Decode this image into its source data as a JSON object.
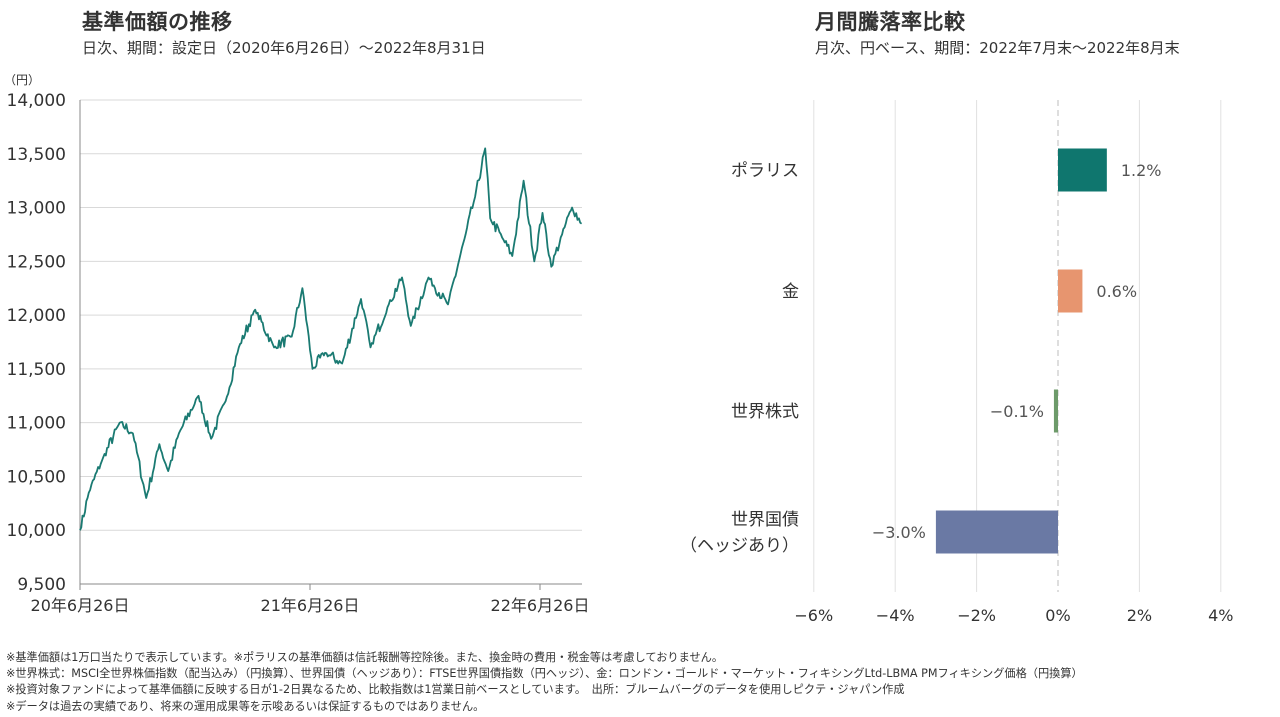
{
  "left_chart": {
    "title": "基準価額の推移",
    "subtitle": "日次、期間：設定日（2020年6月26日）～2022年8月31日"
  },
  "right_chart": {
    "title": "月間騰落率比較",
    "subtitle": "月次、円ベース、期間：2022年7月末～2022年8月末"
  },
  "chart_data": [
    {
      "type": "line",
      "ylabel": "（円）",
      "ylim": [
        9500,
        14000
      ],
      "yticks": [
        "9,500",
        "10,000",
        "10,500",
        "11,000",
        "11,500",
        "12,000",
        "12,500",
        "13,000",
        "13,500",
        "14,000"
      ],
      "xticks": [
        "20年6月26日",
        "21年6月26日",
        "22年6月26日"
      ],
      "grid": true,
      "series": [
        {
          "color": "#1a7a72",
          "x": [
            "2020-06-26",
            "2020-07-10",
            "2020-07-31",
            "2020-08-28",
            "2020-09-18",
            "2020-10-09",
            "2020-10-30",
            "2020-11-13",
            "2020-11-30",
            "2020-12-31",
            "2021-01-20",
            "2021-02-12",
            "2021-03-05",
            "2021-03-31",
            "2021-04-30",
            "2021-05-28",
            "2021-06-14",
            "2021-06-30",
            "2021-07-20",
            "2021-08-16",
            "2021-09-15",
            "2021-09-30",
            "2021-10-29",
            "2021-11-19",
            "2021-12-03",
            "2021-12-31",
            "2022-01-31",
            "2022-02-28",
            "2022-03-15",
            "2022-03-31",
            "2022-04-08",
            "2022-04-29",
            "2022-05-13",
            "2022-05-31",
            "2022-06-17",
            "2022-06-30",
            "2022-07-14",
            "2022-07-31",
            "2022-08-16",
            "2022-08-31"
          ],
          "y": [
            10000,
            10350,
            10650,
            11000,
            10900,
            10300,
            10800,
            10550,
            10900,
            11250,
            10850,
            11200,
            11700,
            12050,
            11700,
            11800,
            12250,
            11500,
            11650,
            11550,
            12150,
            11700,
            12100,
            12350,
            11900,
            12350,
            12100,
            12750,
            13100,
            13550,
            12900,
            12700,
            12550,
            13250,
            12500,
            12950,
            12450,
            12750,
            13000,
            12850
          ]
        }
      ]
    },
    {
      "type": "bar",
      "orientation": "horizontal",
      "categories": [
        "ポラリス",
        "金",
        "世界株式",
        "世界国債\n（ヘッジあり）"
      ],
      "category_lines": [
        [
          "ポラリス"
        ],
        [
          "金"
        ],
        [
          "世界株式"
        ],
        [
          "世界国債",
          "（ヘッジあり）"
        ]
      ],
      "values": [
        1.2,
        0.6,
        -0.1,
        -3.0
      ],
      "value_labels": [
        "1.2%",
        "0.6%",
        "-0.1%",
        "-3.0%"
      ],
      "colors": [
        "#0f766e",
        "#e7956f",
        "#6d9a6a",
        "#6a79a4"
      ],
      "xlim": [
        -6,
        4
      ],
      "xticks": [
        "-6%",
        "-4%",
        "-2%",
        "0%",
        "2%",
        "4%"
      ],
      "grid": true
    }
  ],
  "notes": [
    "※基準価額は1万口当たりで表示しています。※ポラリスの基準価額は信託報酬等控除後。また、換金時の費用・税金等は考慮しておりません。",
    "※世界株式：MSCI全世界株価指数（配当込み）（円換算）、世界国債（ヘッジあり）：FTSE世界国債指数（円ヘッジ）、金：ロンドン・ゴールド・マーケット・フィキシングLtd-LBMA PMフィキシング価格（円換算）",
    "※投資対象ファンドによって基準価額に反映する日が1-2日異なるため、比較指数は1営業日前ベースとしています。　出所：ブルームバーグのデータを使用しピクテ・ジャパン作成",
    "※データは過去の実績であり、将来の運用成果等を示唆あるいは保証するものではありません。"
  ]
}
